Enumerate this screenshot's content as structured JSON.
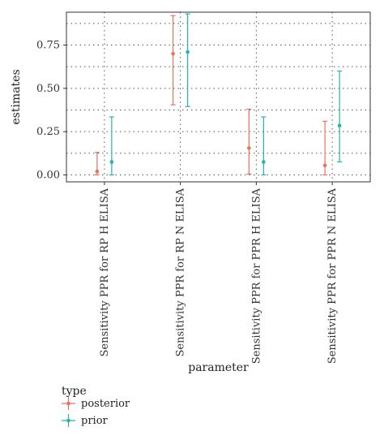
{
  "chart_data": {
    "type": "errorbar",
    "xlabel": "parameter",
    "ylabel": "estimates",
    "categories": [
      "Sensitivity PPR for RP H ELISA",
      "Sensitivity PPR for RP N ELISA",
      "Sensitivity PPR for PPR H ELISA",
      "Sensitivity PPR for PPR N ELISA"
    ],
    "ylim": [
      -0.04,
      0.94
    ],
    "yticks": [
      0.0,
      0.25,
      0.5,
      0.75
    ],
    "ytick_labels": [
      "0.00",
      "0.25",
      "0.50",
      "0.75"
    ],
    "grid": "dotted",
    "legend": {
      "title": "type",
      "position": "bottom-left"
    },
    "series": [
      {
        "name": "posterior",
        "color": "#e8725e",
        "estimate": [
          0.02,
          0.7,
          0.155,
          0.055
        ],
        "lower": [
          0.0,
          0.405,
          0.005,
          0.0
        ],
        "upper": [
          0.13,
          0.92,
          0.38,
          0.31
        ]
      },
      {
        "name": "prior",
        "color": "#26b2b0",
        "estimate": [
          0.075,
          0.71,
          0.075,
          0.285
        ],
        "lower": [
          0.0,
          0.395,
          0.0,
          0.075
        ],
        "upper": [
          0.335,
          0.93,
          0.335,
          0.6
        ]
      }
    ]
  }
}
